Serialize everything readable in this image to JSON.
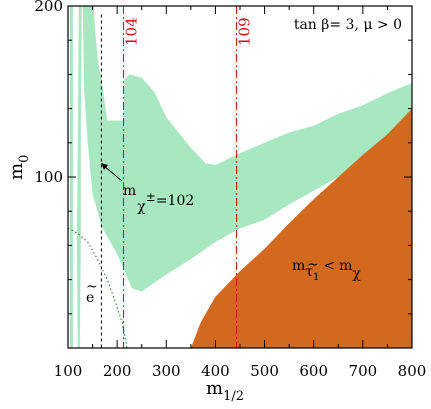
{
  "chart_data": {
    "type": "area",
    "title": "",
    "annotation_top": "tan  β= 3,  μ > 0",
    "xlabel": {
      "main": "m",
      "sub": "1/2"
    },
    "ylabel": {
      "main": "m",
      "sub": "0"
    },
    "xlim": [
      100,
      800
    ],
    "ylim": [
      0,
      200
    ],
    "xticks": [
      100,
      200,
      300,
      400,
      500,
      600,
      700,
      800
    ],
    "yticks": [
      100,
      200
    ],
    "colors": {
      "green_region": "#a8e8c0",
      "orange_region": "#d2691e",
      "red_lines": "#cc1111",
      "black": "#000000"
    },
    "vertical_lines": [
      {
        "label": "104",
        "x": 213
      },
      {
        "label": "109",
        "x": 443
      }
    ],
    "chargino_line": {
      "x": 168,
      "label_main": "m",
      "label_sub": "χ",
      "label_sup": "±",
      "label_value": "=102"
    },
    "selectron_label": "e",
    "selectron_boundary": [
      [
        100,
        70
      ],
      [
        120,
        67
      ],
      [
        140,
        62
      ],
      [
        160,
        52
      ],
      [
        180,
        40
      ],
      [
        195,
        28
      ],
      [
        210,
        15
      ],
      [
        220,
        0
      ]
    ],
    "stau_label": {
      "main": "m",
      "sub_tilde": "τ",
      "sub_index": "1",
      "op": "<",
      "rhs_main": "m",
      "rhs_sub": "χ"
    },
    "green_strips": [
      [
        [
          104,
          0
        ],
        [
          104,
          200
        ],
        [
          110,
          200
        ],
        [
          110,
          0
        ]
      ],
      [
        [
          120,
          0
        ],
        [
          118,
          60
        ],
        [
          120,
          120
        ],
        [
          122,
          200
        ],
        [
          128,
          200
        ],
        [
          126,
          130
        ],
        [
          126,
          60
        ],
        [
          124,
          0
        ]
      ]
    ],
    "green_band": [
      [
        130,
        200
      ],
      [
        133,
        150
      ],
      [
        140,
        120
      ],
      [
        150,
        90
      ],
      [
        170,
        70
      ],
      [
        200,
        55
      ],
      [
        230,
        35
      ],
      [
        250,
        33
      ],
      [
        300,
        43
      ],
      [
        350,
        52
      ],
      [
        400,
        62
      ],
      [
        450,
        70
      ],
      [
        500,
        75
      ],
      [
        550,
        84
      ],
      [
        600,
        92
      ],
      [
        650,
        100
      ],
      [
        700,
        110
      ],
      [
        750,
        120
      ],
      [
        800,
        127
      ],
      [
        800,
        155
      ],
      [
        750,
        149
      ],
      [
        700,
        142
      ],
      [
        650,
        137
      ],
      [
        600,
        130
      ],
      [
        550,
        126
      ],
      [
        500,
        120
      ],
      [
        450,
        114
      ],
      [
        400,
        107
      ],
      [
        380,
        108
      ],
      [
        350,
        117
      ],
      [
        300,
        135
      ],
      [
        275,
        150
      ],
      [
        250,
        158
      ],
      [
        225,
        160
      ],
      [
        215,
        157
      ],
      [
        212,
        133
      ],
      [
        195,
        133
      ],
      [
        180,
        133
      ],
      [
        170,
        153
      ],
      [
        160,
        170
      ],
      [
        155,
        187
      ],
      [
        152,
        200
      ]
    ],
    "orange_region": [
      [
        350,
        0
      ],
      [
        370,
        15
      ],
      [
        400,
        30
      ],
      [
        450,
        45
      ],
      [
        500,
        58
      ],
      [
        550,
        73
      ],
      [
        600,
        87
      ],
      [
        650,
        100
      ],
      [
        700,
        113
      ],
      [
        750,
        125
      ],
      [
        800,
        140
      ],
      [
        800,
        0
      ]
    ]
  }
}
